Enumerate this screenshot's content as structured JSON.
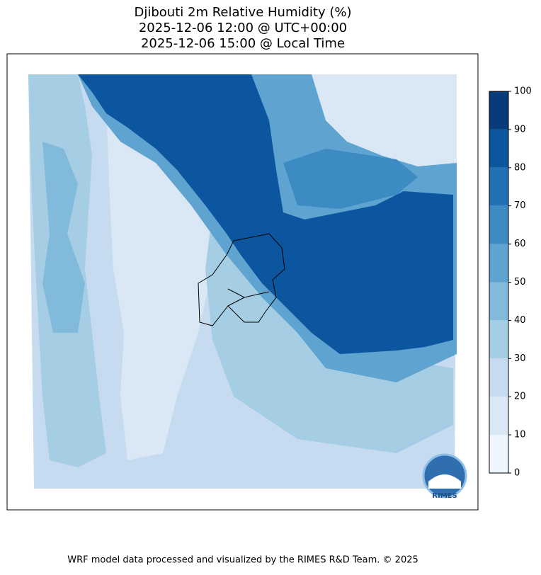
{
  "title": [
    "Djibouti 2m Relative Humidity (%)",
    "2025-12-06 12:00 @ UTC+00:00",
    "2025-12-06 15:00 @ Local Time"
  ],
  "colorbar": {
    "lim": [
      0,
      100
    ],
    "ticks": [
      0,
      10,
      20,
      30,
      40,
      50,
      60,
      70,
      80,
      90,
      100
    ],
    "colors": [
      "#eef5fc",
      "#dae8f6",
      "#c6dbef",
      "#a5cde3",
      "#82badb",
      "#5fa3d1",
      "#3d8bc3",
      "#2171b5",
      "#0c56a0",
      "#083b7c"
    ]
  },
  "logo": "RIMES",
  "footer": "WRF model data processed and visualized by the RIMES R&D Team. © 2025"
}
